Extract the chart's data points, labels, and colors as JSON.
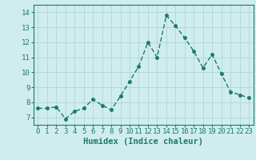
{
  "x": [
    0,
    1,
    2,
    3,
    4,
    5,
    6,
    7,
    8,
    9,
    10,
    11,
    12,
    13,
    14,
    15,
    16,
    17,
    18,
    19,
    20,
    21,
    22,
    23
  ],
  "y": [
    7.6,
    7.6,
    7.7,
    6.9,
    7.4,
    7.6,
    8.2,
    7.8,
    7.5,
    8.4,
    9.4,
    10.4,
    12.0,
    11.0,
    13.8,
    13.1,
    12.3,
    11.4,
    10.3,
    11.2,
    9.9,
    8.7,
    8.5,
    8.3
  ],
  "line_color": "#1a7a6e",
  "bg_color": "#d0eded",
  "grid_color": "#b0d4d4",
  "xlabel": "Humidex (Indice chaleur)",
  "ylim": [
    6.5,
    14.5
  ],
  "xlim": [
    -0.5,
    23.5
  ],
  "yticks": [
    7,
    8,
    9,
    10,
    11,
    12,
    13,
    14
  ],
  "xticks": [
    0,
    1,
    2,
    3,
    4,
    5,
    6,
    7,
    8,
    9,
    10,
    11,
    12,
    13,
    14,
    15,
    16,
    17,
    18,
    19,
    20,
    21,
    22,
    23
  ],
  "marker_size": 2.5,
  "line_width": 1.0,
  "xlabel_fontsize": 7.5,
  "tick_fontsize": 6.5
}
